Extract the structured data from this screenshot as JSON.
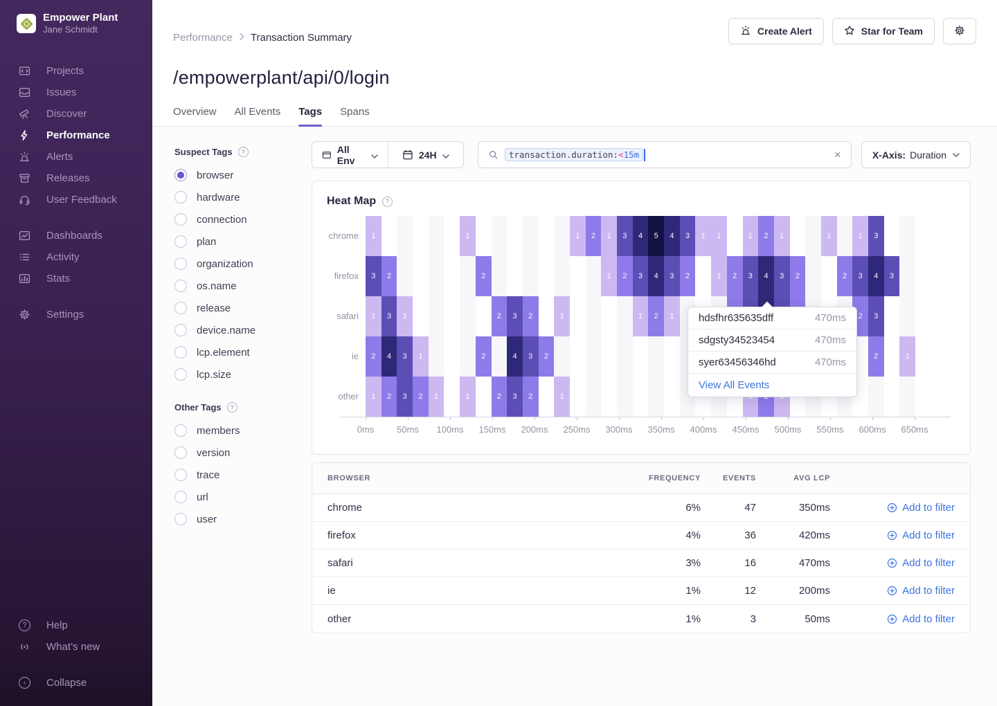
{
  "sidebar": {
    "org_name": "Empower Plant",
    "user_name": "Jane Schmidt",
    "nav_primary": [
      {
        "label": "Projects",
        "icon": "projects-icon"
      },
      {
        "label": "Issues",
        "icon": "issues-icon"
      },
      {
        "label": "Discover",
        "icon": "discover-icon"
      },
      {
        "label": "Performance",
        "icon": "performance-icon",
        "active": true
      },
      {
        "label": "Alerts",
        "icon": "alerts-icon"
      },
      {
        "label": "Releases",
        "icon": "releases-icon"
      },
      {
        "label": "User Feedback",
        "icon": "user-feedback-icon"
      }
    ],
    "nav_secondary": [
      {
        "label": "Dashboards",
        "icon": "dashboards-icon"
      },
      {
        "label": "Activity",
        "icon": "activity-icon"
      },
      {
        "label": "Stats",
        "icon": "stats-icon"
      }
    ],
    "nav_tertiary": [
      {
        "label": "Settings",
        "icon": "settings-icon"
      }
    ],
    "nav_help": [
      {
        "label": "Help",
        "icon": "help-icon"
      },
      {
        "label": "What’s new",
        "icon": "whats-new-icon"
      }
    ],
    "collapse_label": "Collapse"
  },
  "header": {
    "breadcrumb_parent": "Performance",
    "breadcrumb_current": "Transaction Summary",
    "create_alert_label": "Create Alert",
    "star_label": "Star for Team"
  },
  "page": {
    "title": "/empowerplant/api/0/login",
    "tabs": [
      {
        "label": "Overview"
      },
      {
        "label": "All Events"
      },
      {
        "label": "Tags",
        "active": true
      },
      {
        "label": "Spans"
      }
    ]
  },
  "filters": {
    "suspect_title": "Suspect Tags",
    "suspect_tags": [
      "browser",
      "hardware",
      "connection",
      "plan",
      "organization",
      "os.name",
      "release",
      "device.name",
      "lcp.element",
      "lcp.size"
    ],
    "selected_tag": "browser",
    "other_title": "Other Tags",
    "other_tags": [
      "members",
      "version",
      "trace",
      "url",
      "user"
    ]
  },
  "controls": {
    "env_label": "All Env",
    "time_label": "24H",
    "search_token_key": "transaction.duration:",
    "search_token_op": "<",
    "search_token_value": "15m",
    "clear_label": "×",
    "xaxis_label": "X-Axis:",
    "xaxis_value": "Duration"
  },
  "colors": {
    "accent": "#6c5fc7",
    "link_blue": "#3c74dd",
    "token_pink": "#e1379e",
    "token_blue": "#3a6fdb",
    "heat_scale": {
      "1": "#cdb9f2",
      "2": "#8f7ae9",
      "3": "#5b4eb5",
      "4": "#2e2878",
      "5": "#141245"
    }
  },
  "chart_data": {
    "type": "heatmap",
    "title": "Heat Map",
    "rows": [
      "chrome",
      "firefox",
      "safari",
      "ie",
      "other"
    ],
    "columns": 36,
    "x_ticks": [
      "0ms",
      "50ms",
      "100ms",
      "150ms",
      "200ms",
      "250ms",
      "300ms",
      "350ms",
      "400ms",
      "450ms",
      "500ms",
      "550ms",
      "600ms",
      "650ms"
    ],
    "x_axis_selected": "Duration",
    "legend": "none",
    "cells": {
      "chrome": {
        "0": 1,
        "6": 1,
        "13": 1,
        "14": 2,
        "15": 1,
        "16": 3,
        "17": 4,
        "18": 5,
        "19": 4,
        "20": 3,
        "21": 1,
        "22": 1,
        "24": 1,
        "25": 2,
        "26": 1,
        "29": 1,
        "31": 1,
        "32": 3
      },
      "firefox": {
        "0": 3,
        "1": 2,
        "7": 2,
        "15": 1,
        "16": 2,
        "17": 3,
        "18": 4,
        "19": 3,
        "20": 2,
        "22": 1,
        "23": 2,
        "24": 3,
        "25": 4,
        "26": 3,
        "27": 2,
        "30": 2,
        "31": 3,
        "32": 4,
        "33": 3
      },
      "safari": {
        "0": 1,
        "1": 3,
        "2": 1,
        "8": 2,
        "9": 3,
        "10": 2,
        "12": 1,
        "17": 1,
        "18": 2,
        "19": 1,
        "23": 2,
        "24": 3,
        "25": 4,
        "26": 3,
        "27": 2,
        "31": 2,
        "32": 3
      },
      "ie": {
        "0": 2,
        "1": 4,
        "2": 3,
        "3": 1,
        "7": 2,
        "9": 4,
        "10": 3,
        "11": 2,
        "32": 2,
        "34": 1
      },
      "other": {
        "0": 1,
        "1": 2,
        "2": 3,
        "3": 2,
        "4": 1,
        "6": 1,
        "8": 2,
        "9": 3,
        "10": 2,
        "12": 1,
        "24": 1,
        "25": 2,
        "26": 1
      }
    }
  },
  "tooltip": {
    "events": [
      {
        "id": "hdsfhr635635dff",
        "duration": "470ms"
      },
      {
        "id": "sdgsty34523454",
        "duration": "470ms"
      },
      {
        "id": "syer63456346hd",
        "duration": "470ms"
      }
    ],
    "link_label": "View All Events"
  },
  "table": {
    "headers": [
      "BROWSER",
      "FREQUENCY",
      "EVENTS",
      "AVG LCP"
    ],
    "rows": [
      {
        "browser": "chrome",
        "frequency": "6%",
        "events": "47",
        "avg_lcp": "350ms",
        "action": "Add to filter"
      },
      {
        "browser": "firefox",
        "frequency": "4%",
        "events": "36",
        "avg_lcp": "420ms",
        "action": "Add to filter"
      },
      {
        "browser": "safari",
        "frequency": "3%",
        "events": "16",
        "avg_lcp": "470ms",
        "action": "Add to filter"
      },
      {
        "browser": "ie",
        "frequency": "1%",
        "events": "12",
        "avg_lcp": "200ms",
        "action": "Add to filter"
      },
      {
        "browser": "other",
        "frequency": "1%",
        "events": "3",
        "avg_lcp": "50ms",
        "action": "Add to filter"
      }
    ]
  }
}
